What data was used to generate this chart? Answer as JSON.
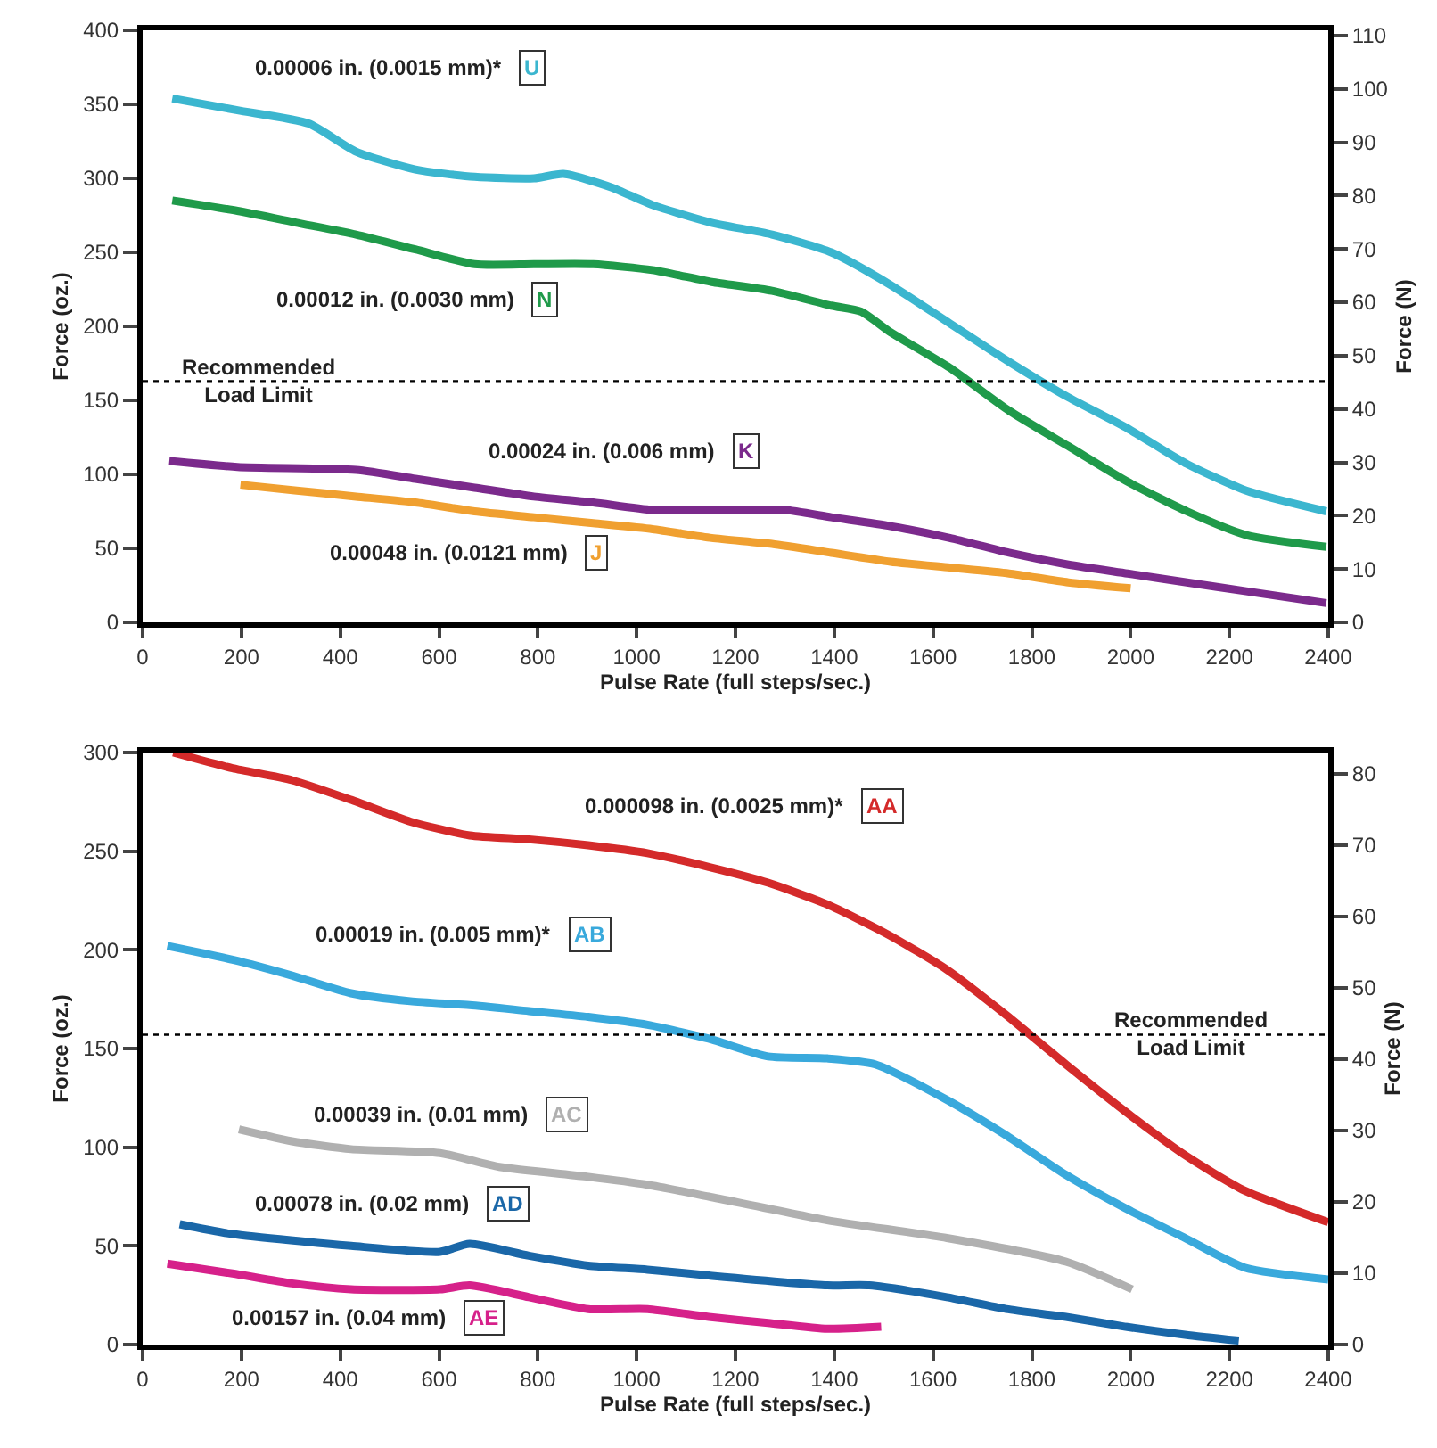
{
  "chart_data": [
    {
      "type": "line",
      "xlabel": "Pulse Rate (full steps/sec.)",
      "ylabel": "Force (oz.)",
      "y2label": "Force (N)",
      "xlim": [
        0,
        2400
      ],
      "xticks": [
        0,
        200,
        400,
        600,
        800,
        1000,
        1200,
        1400,
        1600,
        1800,
        2000,
        2200,
        2400
      ],
      "ylim": [
        0,
        400
      ],
      "yticks": [
        0,
        50,
        100,
        150,
        200,
        250,
        300,
        350,
        400
      ],
      "y2lim": [
        0,
        111
      ],
      "y2ticks": [
        0,
        10,
        20,
        30,
        40,
        50,
        60,
        70,
        80,
        90,
        100,
        110
      ],
      "legend": false,
      "line_style": "solid",
      "marker": "none",
      "series": [
        {
          "name": "0.00006 in. (0.0015 mm)*",
          "color": "#3bb6cf",
          "x": [
            60,
            192,
            336,
            432,
            552,
            672,
            792,
            852,
            948,
            1032,
            1152,
            1274,
            1394,
            1514,
            1634,
            1754,
            1874,
            1994,
            2114,
            2234,
            2396
          ],
          "values": [
            354,
            346,
            337,
            318,
            306,
            301,
            300,
            303,
            294,
            282,
            270,
            262,
            250,
            228,
            202,
            176,
            152,
            131,
            107,
            89,
            75
          ]
        },
        {
          "name": "0.00012 in. (0.0030 mm)",
          "color": "#1f9a4a",
          "x": [
            60,
            192,
            312,
            432,
            552,
            672,
            792,
            912,
            1032,
            1152,
            1274,
            1394,
            1454,
            1514,
            1634,
            1754,
            1874,
            1994,
            2114,
            2234,
            2396
          ],
          "values": [
            285,
            278,
            270,
            262,
            252,
            242,
            242,
            242,
            238,
            230,
            224,
            214,
            210,
            196,
            172,
            143,
            119,
            95,
            75,
            59,
            51
          ]
        },
        {
          "name": "0.00024 in. (0.006 mm)",
          "color": "#7b2a8c",
          "x": [
            54,
            192,
            432,
            552,
            672,
            792,
            912,
            1032,
            1152,
            1298,
            1394,
            1514,
            1634,
            1754,
            1874,
            1994,
            2114,
            2234,
            2396
          ],
          "values": [
            109,
            105,
            103,
            97,
            91,
            85,
            81,
            76,
            76,
            76,
            71,
            65,
            57,
            47,
            39,
            33,
            27,
            21,
            13
          ]
        },
        {
          "name": "0.00048 in. (0.0121 mm)",
          "color": "#f0a030",
          "x": [
            198,
            312,
            432,
            552,
            672,
            792,
            912,
            1032,
            1152,
            1274,
            1394,
            1514,
            1634,
            1754,
            1874,
            2000
          ],
          "values": [
            93,
            89,
            85,
            81,
            75,
            71,
            67,
            63,
            57,
            53,
            47,
            41,
            37,
            33,
            27,
            23
          ]
        }
      ],
      "ref_lines": [
        {
          "axis": "y",
          "value": 163,
          "label": "Recommended Load Limit",
          "line_style": "dotted",
          "color": "#000000"
        }
      ],
      "annotations": [
        "U",
        "N",
        "K",
        "J"
      ]
    },
    {
      "type": "line",
      "xlabel": "Pulse Rate (full steps/sec.)",
      "ylabel": "Force (oz.)",
      "y2label": "Force (N)",
      "xlim": [
        0,
        2400
      ],
      "xticks": [
        0,
        200,
        400,
        600,
        800,
        1000,
        1200,
        1400,
        1600,
        1800,
        2000,
        2200,
        2400
      ],
      "ylim": [
        0,
        300
      ],
      "yticks": [
        0,
        50,
        100,
        150,
        200,
        250,
        300
      ],
      "y2lim": [
        0,
        83
      ],
      "y2ticks": [
        0,
        10,
        20,
        30,
        40,
        50,
        60,
        70,
        80
      ],
      "legend": false,
      "line_style": "solid",
      "marker": "none",
      "series": [
        {
          "name": "0.000098 in. (0.0025 mm)*",
          "color": "#d42a2a",
          "x": [
            62,
            182,
            302,
            422,
            542,
            662,
            782,
            902,
            1022,
            1146,
            1266,
            1386,
            1507,
            1628,
            1748,
            1869,
            1990,
            2110,
            2231,
            2400
          ],
          "values": [
            300,
            292,
            286,
            276,
            265,
            258,
            256,
            253,
            249,
            242,
            234,
            223,
            208,
            190,
            167,
            142,
            118,
            96,
            78,
            62
          ]
        },
        {
          "name": "0.00019 in. (0.005 mm)*",
          "color": "#39a9dc",
          "x": [
            50,
            182,
            302,
            422,
            542,
            662,
            782,
            902,
            1022,
            1146,
            1266,
            1386,
            1483,
            1628,
            1748,
            1869,
            1990,
            2110,
            2231,
            2400
          ],
          "values": [
            202,
            195,
            187,
            178,
            174,
            172,
            169,
            166,
            162,
            155,
            146,
            145,
            142,
            124,
            106,
            86,
            69,
            54,
            39,
            33
          ]
        },
        {
          "name": "0.00039 in. (0.01 mm)",
          "color": "#b0b0b0",
          "x": [
            195,
            302,
            422,
            602,
            722,
            902,
            1022,
            1146,
            1386,
            1628,
            1869,
            2003
          ],
          "values": [
            109,
            103,
            99,
            97,
            90,
            85,
            81,
            75,
            63,
            54,
            42,
            28
          ]
        },
        {
          "name": "0.00078 in. (0.02 mm)",
          "color": "#1a67a8",
          "x": [
            75,
            182,
            422,
            602,
            662,
            782,
            902,
            1022,
            1146,
            1386,
            1471,
            1628,
            1748,
            1869,
            1990,
            2110,
            2219
          ],
          "values": [
            61,
            56,
            50,
            47,
            51,
            45,
            40,
            38,
            35,
            30,
            30,
            24,
            18,
            14,
            9,
            5,
            2
          ]
        },
        {
          "name": "0.00157 in. (0.04 mm)",
          "color": "#d6218a",
          "x": [
            50,
            182,
            302,
            422,
            602,
            662,
            782,
            902,
            1022,
            1146,
            1266,
            1386,
            1495
          ],
          "values": [
            41,
            36,
            31,
            28,
            28,
            30,
            24,
            18,
            18,
            14,
            11,
            8,
            9
          ]
        }
      ],
      "ref_lines": [
        {
          "axis": "y",
          "value": 157,
          "label": "Recommended Load Limit",
          "line_style": "dotted",
          "color": "#000000"
        }
      ],
      "annotations": [
        "AA",
        "AB",
        "AC",
        "AD",
        "AE"
      ]
    }
  ]
}
